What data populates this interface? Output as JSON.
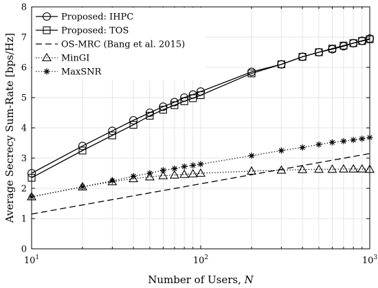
{
  "chart_data": {
    "type": "line",
    "xlabel": "Number of Users, N",
    "ylabel": "Average Secrecy Sum-Rate [bps/Hz]",
    "xscale": "log",
    "xlim": [
      10,
      1000
    ],
    "ylim": [
      0,
      8
    ],
    "yticks": [
      0,
      1,
      2,
      3,
      4,
      5,
      6,
      7,
      8
    ],
    "xticks": [
      {
        "value": 10,
        "base": "10",
        "exp": "1"
      },
      {
        "value": 100,
        "base": "10",
        "exp": "2"
      },
      {
        "value": 1000,
        "base": "10",
        "exp": "3"
      }
    ],
    "grid": true,
    "legend_position": "top-left",
    "series": [
      {
        "name": "Proposed: IHPC",
        "marker": "circle",
        "line": "solid",
        "x": [
          10,
          20,
          30,
          40,
          50,
          60,
          70,
          80,
          90,
          100,
          200,
          300,
          400,
          500,
          600,
          700,
          800,
          900,
          1000
        ],
        "y": [
          2.5,
          3.4,
          3.9,
          4.25,
          4.5,
          4.7,
          4.85,
          5.0,
          5.1,
          5.2,
          5.85,
          6.1,
          6.35,
          6.5,
          6.6,
          6.7,
          6.8,
          6.88,
          6.95
        ]
      },
      {
        "name": "Proposed: TOS",
        "marker": "square",
        "line": "solid",
        "x": [
          10,
          20,
          30,
          40,
          50,
          60,
          70,
          80,
          90,
          100,
          200,
          300,
          400,
          500,
          600,
          700,
          800,
          900,
          1000
        ],
        "y": [
          2.35,
          3.25,
          3.75,
          4.1,
          4.4,
          4.6,
          4.75,
          4.88,
          4.98,
          5.08,
          5.8,
          6.1,
          6.35,
          6.5,
          6.62,
          6.72,
          6.8,
          6.87,
          6.93
        ]
      },
      {
        "name": "OS-MRC (Bang et al. 2015)",
        "marker": "none",
        "line": "dashed",
        "x": [
          10,
          1000
        ],
        "y": [
          1.15,
          3.15
        ]
      },
      {
        "name": "MinGI",
        "marker": "triangle",
        "line": "dotted",
        "x": [
          10,
          20,
          30,
          40,
          50,
          60,
          70,
          80,
          90,
          100,
          200,
          300,
          400,
          500,
          600,
          700,
          800,
          900,
          1000
        ],
        "y": [
          1.72,
          2.05,
          2.22,
          2.32,
          2.38,
          2.42,
          2.44,
          2.46,
          2.48,
          2.5,
          2.57,
          2.6,
          2.62,
          2.63,
          2.63,
          2.64,
          2.64,
          2.64,
          2.63
        ]
      },
      {
        "name": "MaxSNR",
        "marker": "star",
        "line": "dotted",
        "x": [
          10,
          20,
          30,
          40,
          50,
          60,
          70,
          80,
          90,
          100,
          200,
          300,
          400,
          500,
          600,
          700,
          800,
          900,
          1000
        ],
        "y": [
          1.72,
          2.05,
          2.25,
          2.4,
          2.5,
          2.6,
          2.65,
          2.72,
          2.76,
          2.8,
          3.08,
          3.25,
          3.35,
          3.45,
          3.52,
          3.56,
          3.6,
          3.64,
          3.68
        ]
      }
    ]
  }
}
